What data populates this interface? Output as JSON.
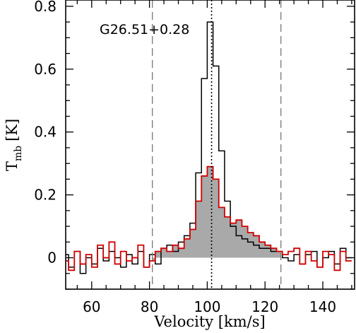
{
  "chart_data": {
    "type": "line",
    "annotation": "G26.51+0.28",
    "xlabel": "Velocity [km/s]",
    "ylabel_main": "T",
    "ylabel_sub": "mb",
    "ylabel_unit": "[K]",
    "xlim": [
      51,
      151
    ],
    "ylim": [
      -0.1,
      0.82
    ],
    "x_ticks": [
      60,
      80,
      100,
      120,
      140
    ],
    "y_ticks": [
      0,
      0.2,
      0.4,
      0.6,
      0.8
    ],
    "y_tick_labels": [
      "0",
      "0.2",
      "0.4",
      "0.6",
      "0.8"
    ],
    "vlines_dashed": [
      81,
      125.5
    ],
    "vline_dotted": 101.5,
    "series": [
      {
        "color": "#000000",
        "x": [
          51,
          53,
          55,
          57,
          59,
          61,
          63,
          65,
          67,
          69,
          71,
          73,
          75,
          77,
          79,
          81,
          83,
          85,
          87,
          89,
          91,
          93,
          95,
          97,
          99,
          101,
          103,
          105,
          107,
          109,
          111,
          113,
          115,
          117,
          119,
          121,
          123,
          125,
          127,
          129,
          131,
          133,
          135,
          137,
          139,
          141,
          143,
          145,
          147,
          149
        ],
        "y": [
          0.01,
          -0.03,
          0.02,
          -0.05,
          0.0,
          -0.02,
          0.03,
          -0.01,
          0.02,
          0.0,
          -0.03,
          0.01,
          -0.02,
          0.02,
          -0.03,
          0.01,
          -0.02,
          0.03,
          0.04,
          0.02,
          0.05,
          0.07,
          0.11,
          0.27,
          0.57,
          0.75,
          0.61,
          0.34,
          0.18,
          0.1,
          0.07,
          0.06,
          0.05,
          0.04,
          0.03,
          0.03,
          0.02,
          0.02,
          0.0,
          -0.01,
          0.01,
          -0.02,
          0.01,
          0.02,
          -0.03,
          0.0,
          0.02,
          -0.02,
          0.03,
          0.0
        ]
      },
      {
        "color": "#d00000",
        "fill": "#a9a9a9",
        "x": [
          51,
          53,
          55,
          57,
          59,
          61,
          63,
          65,
          67,
          69,
          71,
          73,
          75,
          77,
          79,
          81,
          83,
          85,
          87,
          89,
          91,
          93,
          95,
          97,
          99,
          101,
          103,
          105,
          107,
          109,
          111,
          113,
          115,
          117,
          119,
          121,
          123,
          125,
          127,
          129,
          131,
          133,
          135,
          137,
          139,
          141,
          143,
          145,
          147,
          149
        ],
        "y": [
          -0.01,
          -0.04,
          0.02,
          -0.02,
          0.01,
          -0.03,
          0.04,
          0.0,
          0.05,
          -0.02,
          0.02,
          -0.01,
          0.0,
          0.04,
          -0.03,
          -0.01,
          0.02,
          0.03,
          0.02,
          0.04,
          0.03,
          0.06,
          0.09,
          0.18,
          0.26,
          0.29,
          0.25,
          0.16,
          0.13,
          0.11,
          0.12,
          0.1,
          0.08,
          0.07,
          0.05,
          0.04,
          0.03,
          0.02,
          0.01,
          0.02,
          0.03,
          -0.02,
          0.02,
          -0.01,
          -0.03,
          0.02,
          0.01,
          -0.04,
          0.02,
          -0.01
        ]
      }
    ]
  }
}
